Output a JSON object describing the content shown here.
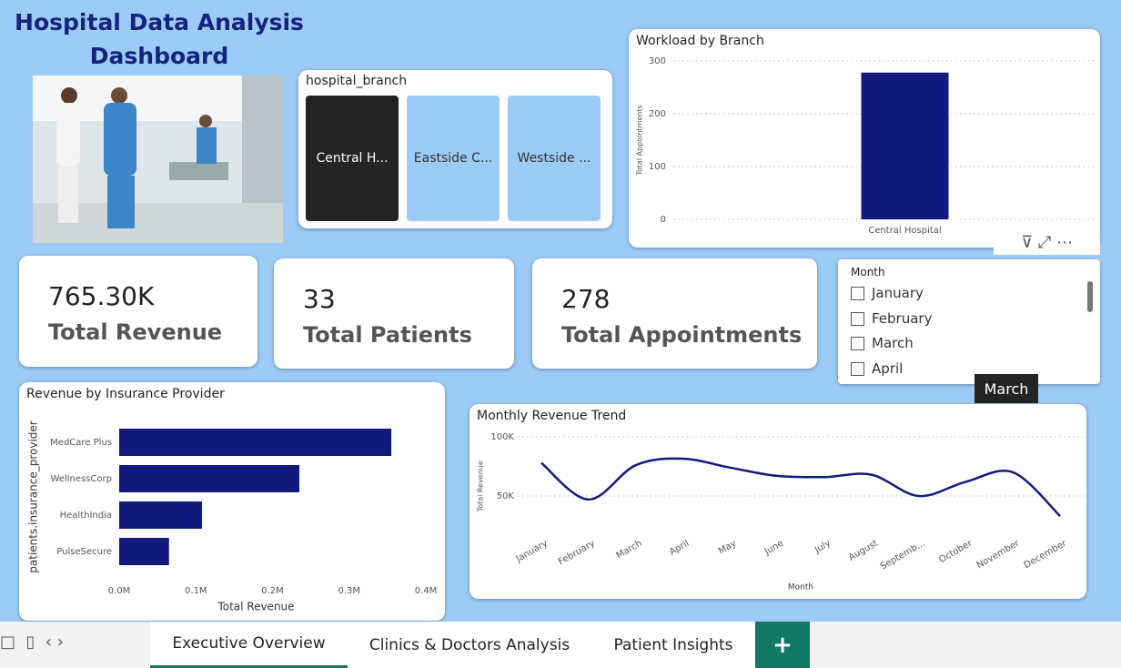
{
  "header": {
    "title": "Hospital Data Analysis Dashboard"
  },
  "branch_slicer": {
    "title": "hospital_branch",
    "options": [
      "Central H...",
      "Eastside C...",
      "Westside ..."
    ]
  },
  "kpis": [
    {
      "value": "765.30K",
      "label": "Total Revenue"
    },
    {
      "value": "33",
      "label": "Total Patients"
    },
    {
      "value": "278",
      "label": "Total Appointments"
    }
  ],
  "month_slicer": {
    "title": "Month",
    "options": [
      "January",
      "February",
      "March",
      "April"
    ],
    "tooltip": "March"
  },
  "chart_data": [
    {
      "type": "bar",
      "title": "Workload by Branch",
      "y_label": "Total Appointments",
      "categories": [
        "Central Hospital"
      ],
      "values": [
        278
      ],
      "color": "#121a7e",
      "ylim": [
        0,
        300
      ],
      "yticks": [
        0,
        100,
        200,
        300
      ],
      "grid": true
    },
    {
      "type": "hbar",
      "title": "Revenue by Insurance Provider",
      "x_label": "Total Revenue",
      "y_label": "patients.insurance_provider",
      "categories": [
        "MedCare Plus",
        "WellnessCorp",
        "HealthIndia",
        "PulseSecure"
      ],
      "values": [
        355000,
        235000,
        108000,
        65000
      ],
      "color": "#121a7e",
      "xlim": [
        0,
        400000
      ],
      "xticks": [
        {
          "value": 0,
          "label": "0.0M"
        },
        {
          "value": 100000,
          "label": "0.1M"
        },
        {
          "value": 200000,
          "label": "0.2M"
        },
        {
          "value": 300000,
          "label": "0.3M"
        },
        {
          "value": 400000,
          "label": "0.4M"
        }
      ],
      "grid": false
    },
    {
      "type": "line",
      "title": "Monthly Revenue Trend",
      "x_label": "Month",
      "y_label": "Total Revenue",
      "categories": [
        "January",
        "February",
        "March",
        "April",
        "May",
        "June",
        "July",
        "August",
        "Septemb...",
        "October",
        "November",
        "December"
      ],
      "values": [
        78000,
        47000,
        76000,
        81500,
        74000,
        67000,
        66000,
        68000,
        50000,
        62000,
        70000,
        33000
      ],
      "color": "#121a7e",
      "ylim": [
        30000,
        105000
      ],
      "yticks": [
        {
          "value": 50000,
          "label": "50K"
        },
        {
          "value": 100000,
          "label": "100K"
        }
      ],
      "grid": true
    }
  ],
  "tabs": [
    "Executive Overview",
    "Clinics & Doctors Analysis",
    "Patient Insights",
    "+"
  ]
}
